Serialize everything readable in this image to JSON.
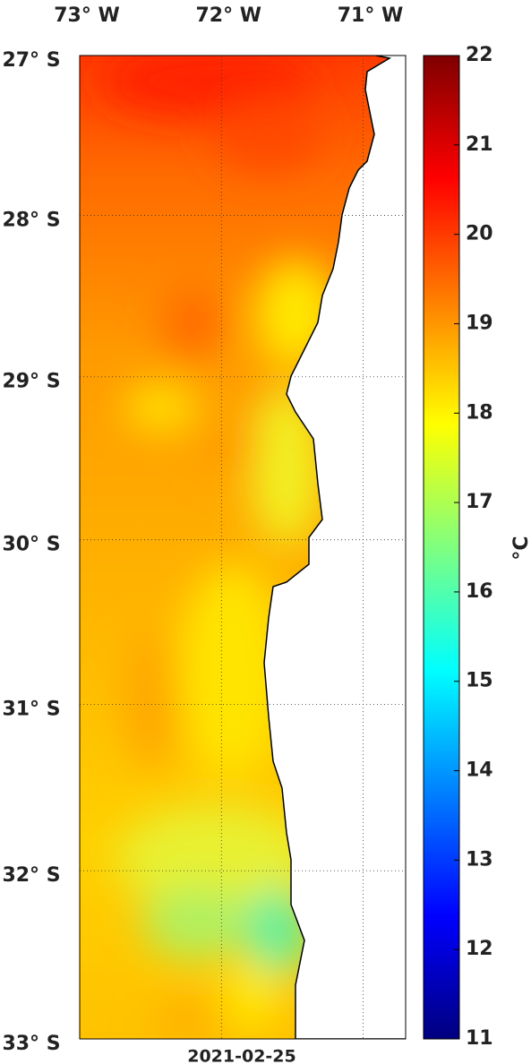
{
  "map": {
    "xlim": [
      -73,
      -70.7
    ],
    "ylim": [
      -33,
      -27
    ],
    "lon_ticks": [
      {
        "value": -73,
        "label": "73° W"
      },
      {
        "value": -72,
        "label": "72° W"
      },
      {
        "value": -71,
        "label": "71° W"
      }
    ],
    "lat_ticks": [
      {
        "value": -27,
        "label": "27° S"
      },
      {
        "value": -28,
        "label": "28° S"
      },
      {
        "value": -29,
        "label": "29° S"
      },
      {
        "value": -30,
        "label": "30° S"
      },
      {
        "value": -31,
        "label": "31° S"
      },
      {
        "value": -32,
        "label": "32° S"
      },
      {
        "value": -33,
        "label": "33° S"
      }
    ],
    "date": "2021-02-25",
    "colorbar": {
      "lim": [
        11,
        22
      ],
      "ticks": [
        11,
        12,
        13,
        14,
        15,
        16,
        17,
        18,
        19,
        20,
        21,
        22
      ],
      "label": "°C"
    }
  }
}
